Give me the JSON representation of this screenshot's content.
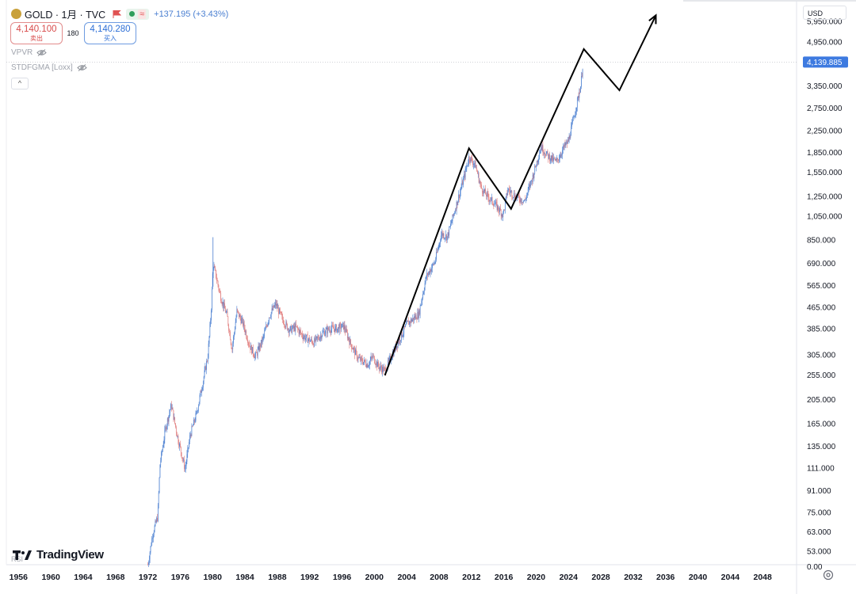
{
  "header": {
    "symbol": "GOLD · 1月 · TVC",
    "change": "+137.195 (+3.43%)",
    "wave_glyph": "≈"
  },
  "trade": {
    "sell_price": "4,140.100",
    "sell_label": "卖出",
    "spread": "180",
    "buy_price": "4,140.280",
    "buy_label": "买入"
  },
  "indicators": [
    "VPVR",
    "STDFGMA [Loxx]"
  ],
  "collapse_glyph": "^",
  "currency": "USD",
  "branding": {
    "logo_text": "TradingView"
  },
  "partial_text": {
    "left_label": "RSI",
    "bottom_right_axis": "0.00"
  },
  "colors": {
    "up": "#4a7fd1",
    "down": "#e07a7a",
    "price_label_bg": "#3d7ae0",
    "line": "#000000"
  },
  "chart_data": {
    "type": "candlestick",
    "interval": "1M",
    "y_scale": "log",
    "ylim": [
      47,
      7000
    ],
    "xlim": [
      1954.5,
      2052
    ],
    "y_ticks": [
      "5,950.000",
      "4,950.000",
      "3,350.000",
      "2,750.000",
      "2,250.000",
      "1,850.000",
      "1,550.000",
      "1,250.000",
      "1,050.000",
      "850.000",
      "690.000",
      "565.000",
      "465.000",
      "385.000",
      "305.000",
      "255.000",
      "205.000",
      "165.000",
      "135.000",
      "111.000",
      "91.000",
      "75.000",
      "63.000",
      "53.000"
    ],
    "x_ticks": [
      "1956",
      "1960",
      "1964",
      "1968",
      "1972",
      "1976",
      "1980",
      "1984",
      "1988",
      "1992",
      "1996",
      "2000",
      "2004",
      "2008",
      "2012",
      "2016",
      "2020",
      "2024",
      "2028",
      "2032",
      "2036",
      "2040",
      "2044",
      "2048"
    ],
    "last_price_label": "4,139.885",
    "last_price": 4139.885,
    "price_path": [
      [
        1972.0,
        47
      ],
      [
        1972.6,
        62
      ],
      [
        1973.2,
        72
      ],
      [
        1973.5,
        115
      ],
      [
        1974.2,
        160
      ],
      [
        1974.9,
        195
      ],
      [
        1975.6,
        150
      ],
      [
        1976.6,
        110
      ],
      [
        1977.2,
        148
      ],
      [
        1978.0,
        180
      ],
      [
        1978.8,
        240
      ],
      [
        1979.4,
        300
      ],
      [
        1979.8,
        440
      ],
      [
        1980.05,
        680
      ],
      [
        1980.3,
        640
      ],
      [
        1981.0,
        510
      ],
      [
        1981.8,
        430
      ],
      [
        1982.4,
        320
      ],
      [
        1983.0,
        450
      ],
      [
        1983.8,
        400
      ],
      [
        1984.6,
        330
      ],
      [
        1985.3,
        300
      ],
      [
        1986.2,
        350
      ],
      [
        1987.0,
        430
      ],
      [
        1987.8,
        480
      ],
      [
        1988.6,
        420
      ],
      [
        1989.5,
        380
      ],
      [
        1990.3,
        390
      ],
      [
        1991.2,
        360
      ],
      [
        1992.5,
        340
      ],
      [
        1993.6,
        370
      ],
      [
        1994.5,
        385
      ],
      [
        1995.5,
        385
      ],
      [
        1996.2,
        395
      ],
      [
        1997.0,
        340
      ],
      [
        1998.0,
        295
      ],
      [
        1999.2,
        280
      ],
      [
        1999.8,
        300
      ],
      [
        2000.5,
        275
      ],
      [
        2001.3,
        265
      ],
      [
        2002.5,
        320
      ],
      [
        2004.0,
        400
      ],
      [
        2005.5,
        440
      ],
      [
        2006.4,
        610
      ],
      [
        2007.5,
        700
      ],
      [
        2008.3,
        900
      ],
      [
        2009.0,
        870
      ],
      [
        2010.0,
        1120
      ],
      [
        2011.0,
        1450
      ],
      [
        2011.7,
        1780
      ],
      [
        2012.5,
        1650
      ],
      [
        2013.2,
        1350
      ],
      [
        2014.0,
        1250
      ],
      [
        2015.0,
        1160
      ],
      [
        2015.9,
        1060
      ],
      [
        2016.5,
        1330
      ],
      [
        2017.5,
        1250
      ],
      [
        2018.6,
        1200
      ],
      [
        2019.6,
        1500
      ],
      [
        2020.6,
        1950
      ],
      [
        2021.4,
        1800
      ],
      [
        2022.5,
        1700
      ],
      [
        2023.5,
        1950
      ],
      [
        2024.0,
        2050
      ],
      [
        2024.8,
        2650
      ],
      [
        2025.5,
        3350
      ],
      [
        2025.8,
        4140
      ]
    ],
    "drawing_path": [
      [
        2001.3,
        254
      ],
      [
        2011.7,
        1920
      ],
      [
        2016.9,
        1120
      ],
      [
        2025.9,
        4650
      ],
      [
        2030.3,
        3220
      ],
      [
        2034.8,
        6280
      ]
    ],
    "drawing_arrow": true
  }
}
